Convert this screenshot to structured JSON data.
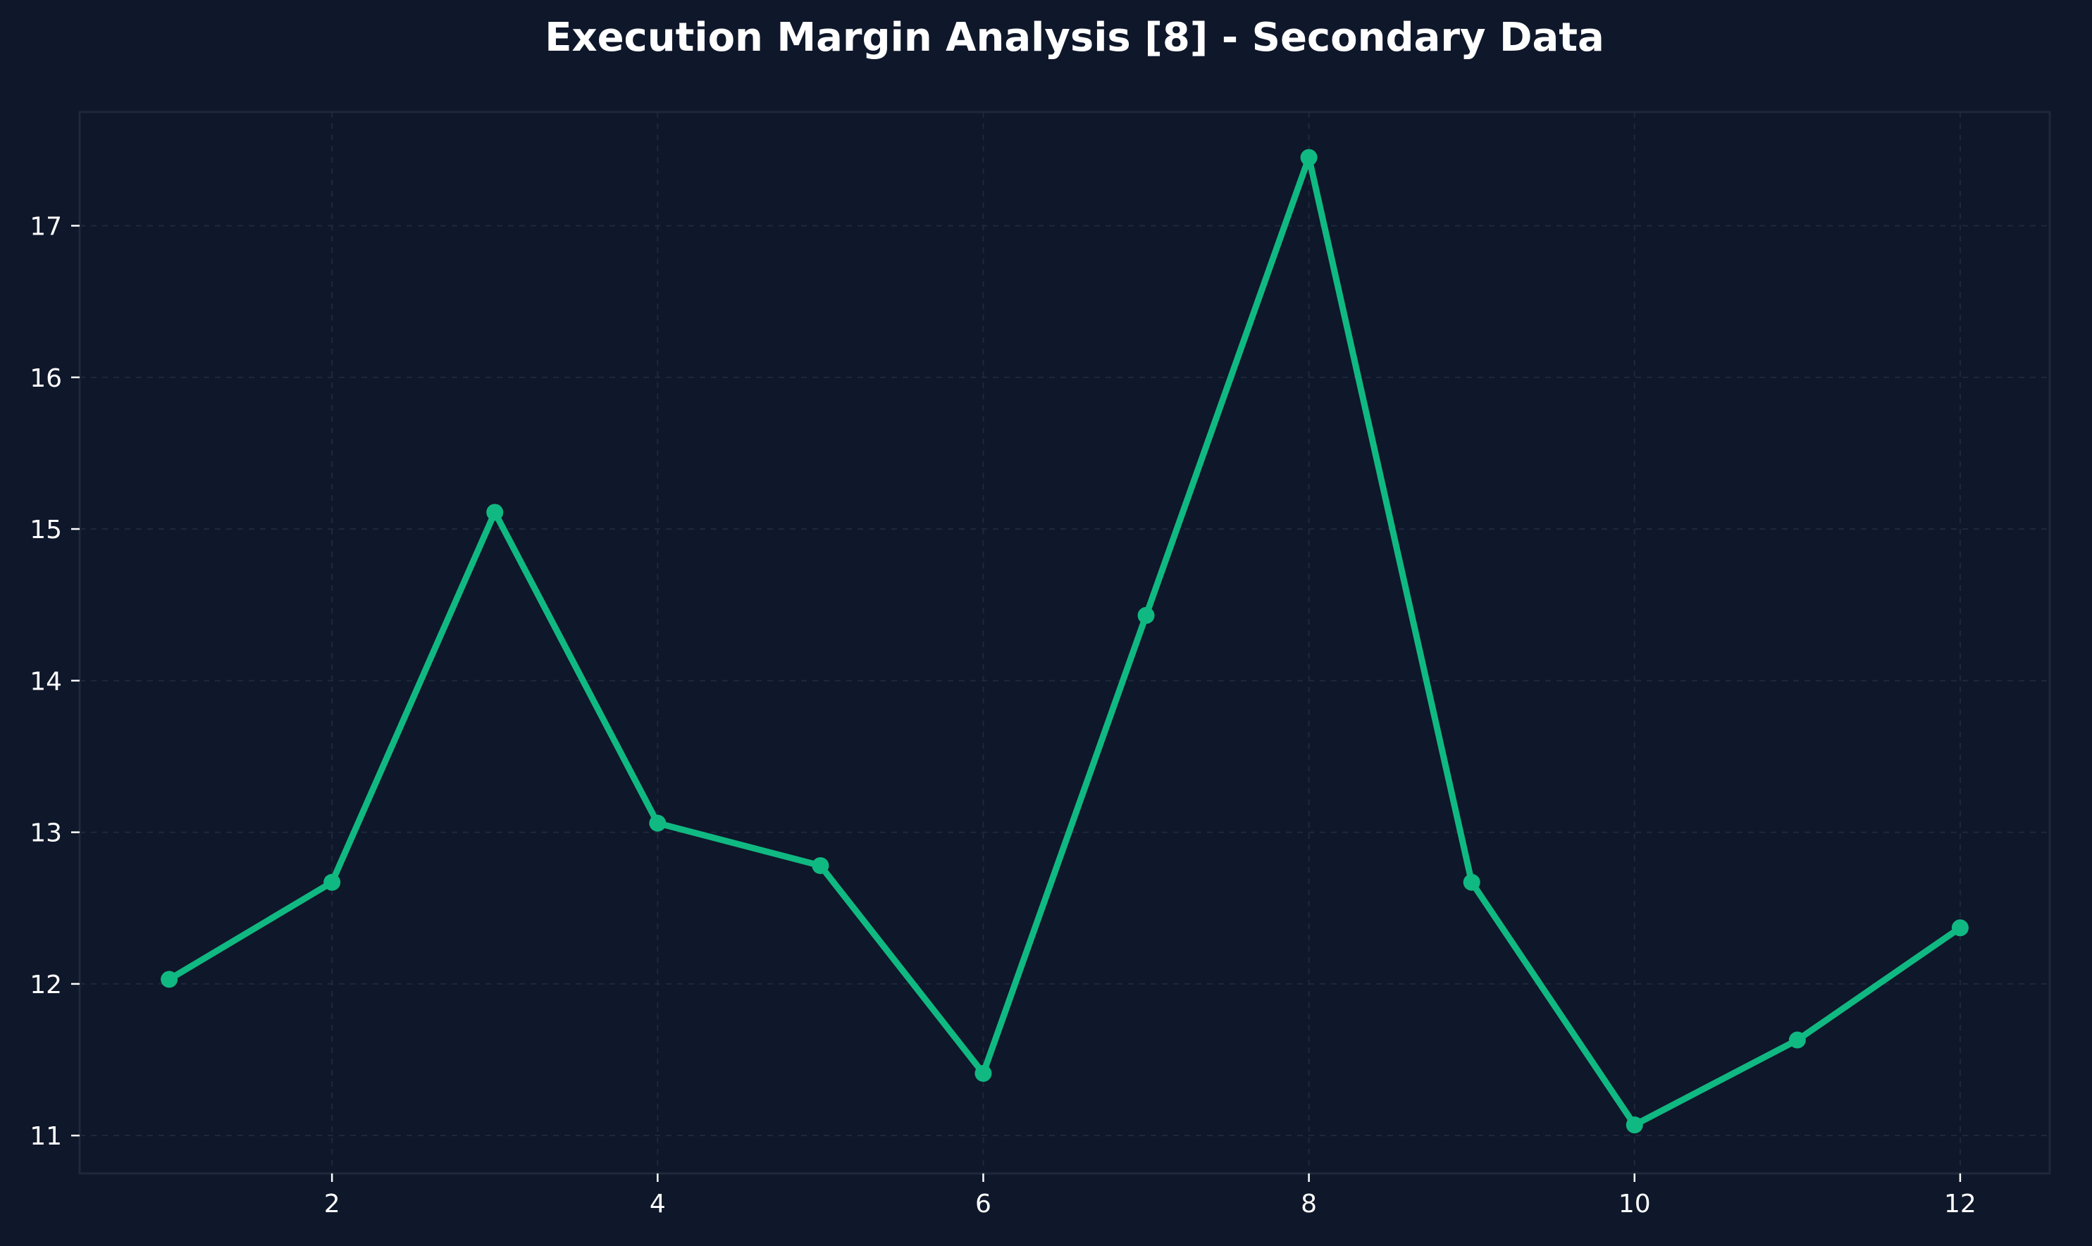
{
  "chart_data": {
    "type": "line",
    "title": "Execution Margin Analysis [8] - Secondary Data",
    "xlabel": "",
    "ylabel": "",
    "x": [
      1,
      2,
      3,
      4,
      5,
      6,
      7,
      8,
      9,
      10,
      11,
      12
    ],
    "series": [
      {
        "values": [
          12.03,
          12.67,
          15.11,
          13.06,
          12.78,
          11.41,
          14.43,
          17.45,
          12.67,
          11.07,
          11.63,
          12.37
        ]
      }
    ],
    "xlim": [
      0.45,
      12.55
    ],
    "ylim": [
      10.75,
      17.75
    ],
    "xticks": [
      2,
      4,
      6,
      8,
      10,
      12
    ],
    "yticks": [
      11,
      12,
      13,
      14,
      15,
      16,
      17
    ],
    "grid": true,
    "legend": "none",
    "colors": {
      "background": "#0f172a",
      "line": "#10b981",
      "grid": "#1e293b",
      "text": "#ffffff"
    }
  }
}
